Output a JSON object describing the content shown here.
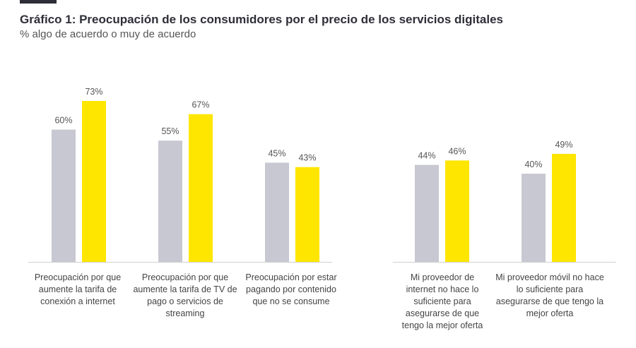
{
  "chart_data": {
    "type": "bar",
    "title": "Gráfico 1: Preocupación de los consumidores por el precio de los servicios digitales",
    "subtitle": "% algo de acuerdo o muy de acuerdo",
    "xlabel": "",
    "ylabel": "",
    "ylim": [
      0,
      80
    ],
    "grid": false,
    "categories": [
      "Preocupación por que aumente la tarifa de conexión a internet",
      "Preocupación por que aumente la tarifa de TV de pago o servicios de streaming",
      "Preocupación por estar pagando por contenido que no se consume",
      "Mi proveedor de internet no hace lo suficiente para asegurarse de que tengo la mejor oferta",
      "Mi proveedor móvil no hace lo suficiente para asegurarse de que tengo la mejor oferta"
    ],
    "series": [
      {
        "name": "Serie gris",
        "color": "#c8c8d2",
        "values": [
          60,
          55,
          45,
          44,
          40
        ],
        "labels": [
          "60%",
          "55%",
          "45%",
          "44%",
          "40%"
        ]
      },
      {
        "name": "Serie amarilla",
        "color": "#ffe600",
        "values": [
          73,
          67,
          43,
          46,
          49
        ],
        "labels": [
          "73%",
          "67%",
          "43%",
          "46%",
          "49%"
        ]
      }
    ]
  },
  "colors": {
    "title": "#2e2e38",
    "axis": "#cfcfcf",
    "label": "#555555"
  }
}
